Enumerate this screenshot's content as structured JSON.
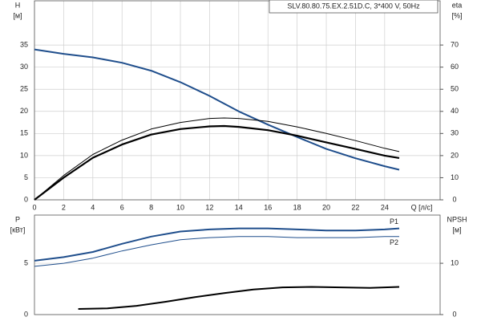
{
  "chart_data": [
    {
      "type": "line",
      "title": "SLV.80.80.75.EX.2.51D.C, 3*400 V, 50Hz",
      "y_label": "H",
      "y_unit": "[м]",
      "y2_label": "eta",
      "y2_unit": "[%]",
      "x_label": "Q [л/с]",
      "xlim": [
        0,
        27.8
      ],
      "xticks": [
        0,
        2,
        4,
        6,
        8,
        10,
        12,
        14,
        16,
        18,
        20,
        22,
        24
      ],
      "ylim": [
        0,
        45
      ],
      "yticks": [
        0,
        5,
        10,
        15,
        20,
        25,
        30,
        35
      ],
      "y2lim": [
        0,
        90
      ],
      "y2ticks": [
        0,
        10,
        20,
        30,
        40,
        50,
        60,
        70
      ],
      "series": [
        {
          "color": "#1f4e8c",
          "width": 2,
          "x": [
            0,
            2,
            4,
            6,
            8,
            10,
            12,
            14,
            16,
            18,
            20,
            22,
            24,
            25
          ],
          "values": [
            34,
            33,
            32.2,
            31,
            29.2,
            26.6,
            23.5,
            20,
            17,
            14.2,
            11.5,
            9.4,
            7.6,
            6.8
          ]
        },
        {
          "color": "#000000",
          "width": 1,
          "axis": "y2",
          "x": [
            0,
            2,
            4,
            6,
            8,
            10,
            12,
            13,
            14,
            16,
            18,
            20,
            22,
            24,
            25
          ],
          "values": [
            0,
            11,
            20.5,
            27,
            32,
            35,
            36.8,
            37,
            36.8,
            35.5,
            33,
            30,
            26.8,
            23.3,
            21.8
          ]
        },
        {
          "color": "#000000",
          "width": 2.2,
          "axis": "y2",
          "x": [
            0,
            2,
            4,
            6,
            8,
            10,
            12,
            13,
            14,
            16,
            18,
            20,
            22,
            24,
            25
          ],
          "values": [
            0,
            10,
            19,
            25,
            29.5,
            32,
            33.2,
            33.4,
            33,
            31.5,
            29,
            26,
            23,
            20,
            18.9
          ]
        }
      ]
    },
    {
      "type": "line",
      "y_label": "P",
      "y_unit": "[кВт]",
      "y2_label": "NPSH",
      "y2_unit": "[м]",
      "xlim": [
        0,
        27.8
      ],
      "ylim": [
        0,
        9.7
      ],
      "yticks": [
        0,
        5
      ],
      "y2lim": [
        0,
        19.4
      ],
      "y2ticks": [
        0,
        10
      ],
      "series": [
        {
          "name": "P1",
          "color": "#1f4e8c",
          "width": 2,
          "x": [
            0,
            2,
            4,
            6,
            8,
            10,
            12,
            14,
            16,
            18,
            20,
            22,
            24,
            25
          ],
          "values": [
            5.25,
            5.6,
            6.1,
            6.9,
            7.6,
            8.1,
            8.3,
            8.4,
            8.4,
            8.3,
            8.2,
            8.2,
            8.3,
            8.4
          ]
        },
        {
          "name": "P2",
          "color": "#1f4e8c",
          "width": 1,
          "x": [
            0,
            2,
            4,
            6,
            8,
            10,
            12,
            14,
            16,
            18,
            20,
            22,
            24,
            25
          ],
          "values": [
            4.7,
            5.0,
            5.5,
            6.2,
            6.8,
            7.3,
            7.5,
            7.6,
            7.6,
            7.5,
            7.5,
            7.5,
            7.6,
            7.6
          ]
        },
        {
          "color": "#000000",
          "width": 2,
          "axis": "y2",
          "x": [
            3,
            5,
            7,
            9,
            11,
            13,
            15,
            17,
            19,
            21,
            23,
            25
          ],
          "values": [
            1.1,
            1.2,
            1.7,
            2.5,
            3.4,
            4.2,
            4.9,
            5.3,
            5.4,
            5.3,
            5.2,
            5.4
          ]
        }
      ]
    }
  ]
}
